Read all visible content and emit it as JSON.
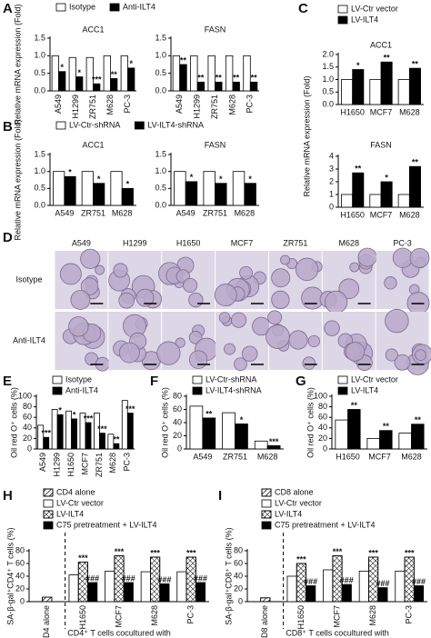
{
  "chart_data": [
    {
      "type": "bar",
      "panel": "A",
      "title": "ACC1",
      "ylabel": "Relative mRNA expression (Fold)",
      "categories": [
        "A549",
        "H1299",
        "ZR751",
        "M628",
        "PC-3"
      ],
      "series": [
        {
          "name": "Isotype",
          "color": "#ffffff",
          "values": [
            1,
            0.95,
            0.95,
            1,
            1
          ]
        },
        {
          "name": "Anti-ILT4",
          "color": "#000000",
          "values": [
            0.55,
            0.4,
            0.2,
            0.35,
            0.65
          ],
          "significance": [
            "*",
            "*",
            "***",
            "**",
            "*"
          ]
        }
      ],
      "ylim": [
        0,
        1.5
      ],
      "yticks": [
        {
          "value": 0,
          "label": "0.0"
        },
        0.5,
        {
          "value": 1,
          "label": "1.0"
        },
        1.5
      ]
    },
    {
      "type": "bar",
      "title": "FASN",
      "categories": [
        "A549",
        "H1299",
        "ZR751",
        "M628",
        "PC-3"
      ],
      "series": [
        {
          "color": "#ffffff",
          "values": [
            1,
            1,
            1,
            1,
            1
          ]
        },
        {
          "color": "#000000",
          "values": [
            0.75,
            0.25,
            0.25,
            0.25,
            0.25
          ],
          "significance": [
            "**",
            "**",
            "**",
            "**",
            "**"
          ]
        }
      ],
      "ylim": [
        0,
        1.5
      ],
      "yticks": [
        {
          "value": 0,
          "label": "0.0"
        },
        0.5,
        {
          "value": 1,
          "label": "1.0"
        },
        1.5
      ]
    },
    {
      "type": "bar",
      "panel": "B",
      "title": "ACC1",
      "ylabel": "Relative mRNA expression (Fold)",
      "categories": [
        "A549",
        "ZR751",
        "M628"
      ],
      "series": [
        {
          "name": "LV-Ctr-shRNA",
          "color": "#ffffff",
          "values": [
            1,
            1,
            1
          ]
        },
        {
          "name": "LV-ILT4-shRNA",
          "color": "#000000",
          "values": [
            0.85,
            0.65,
            0.5
          ],
          "significance": [
            "*",
            "*",
            "*"
          ]
        }
      ],
      "ylim": [
        0,
        1.5
      ],
      "yticks": [
        {
          "value": 0,
          "label": "0.0"
        },
        0.5,
        {
          "value": 1,
          "label": "1.0"
        },
        1.5
      ]
    },
    {
      "type": "bar",
      "title": "FASN",
      "categories": [
        "A549",
        "ZR751",
        "M628"
      ],
      "series": [
        {
          "color": "#ffffff",
          "values": [
            1,
            1,
            1
          ]
        },
        {
          "color": "#000000",
          "values": [
            0.7,
            0.65,
            0.65
          ],
          "significance": [
            "*",
            "*",
            "*"
          ]
        }
      ],
      "ylim": [
        0,
        1.5
      ],
      "yticks": [
        {
          "value": 0,
          "label": "0.0"
        },
        0.5,
        {
          "value": 1,
          "label": "1.0"
        },
        1.5
      ]
    },
    {
      "type": "bar",
      "panel": "C",
      "title": "ACC1",
      "ylabel": "Relative mRNA expression (Fold)",
      "categories": [
        "H1650",
        "MCF7",
        "M628"
      ],
      "series": [
        {
          "name": "LV-Ctr vector",
          "color": "#ffffff",
          "values": [
            1,
            1,
            1
          ]
        },
        {
          "name": "LV-ILT4",
          "color": "#000000",
          "values": [
            1.4,
            1.7,
            1.45
          ],
          "significance": [
            "*",
            "**",
            "**"
          ]
        }
      ],
      "ylim": [
        0,
        2
      ],
      "yticks": [
        {
          "value": 0,
          "label": "0.0"
        },
        0.5,
        {
          "value": 1,
          "label": "1.0"
        },
        1.5,
        {
          "value": 2,
          "label": "2.0"
        }
      ]
    },
    {
      "type": "bar",
      "title": "FASN",
      "categories": [
        "H1650",
        "MCF7",
        "M628"
      ],
      "series": [
        {
          "color": "#ffffff",
          "values": [
            1,
            1,
            1
          ]
        },
        {
          "color": "#000000",
          "values": [
            2.7,
            2.0,
            3.2
          ],
          "significance": [
            "**",
            "*",
            "**"
          ]
        }
      ],
      "ylim": [
        0,
        4
      ],
      "yticks": [
        0,
        1,
        2,
        3,
        4
      ]
    },
    {
      "type": "bar",
      "panel": "E",
      "ylabel": "Oil red O⁺ cells (%)",
      "categories": [
        "A549",
        "H1299",
        "H1650",
        "MCF7",
        "ZR751",
        "M628",
        "PC-3"
      ],
      "series": [
        {
          "name": "Isotype",
          "color": "#ffffff",
          "values": [
            45,
            75,
            72,
            68,
            68,
            28,
            92
          ]
        },
        {
          "name": "Anti-ILT4",
          "color": "#000000",
          "values": [
            22,
            65,
            57,
            50,
            30,
            10,
            68
          ],
          "significance": [
            "***",
            "*",
            "*",
            "***",
            "***",
            "**",
            "***"
          ]
        }
      ],
      "ylim": [
        0,
        100
      ],
      "yticks": [
        0,
        20,
        40,
        60,
        80,
        100
      ]
    },
    {
      "type": "bar",
      "panel": "F",
      "ylabel": "Oil red O⁺ cells (%)",
      "categories": [
        "A549",
        "ZR751",
        "M628"
      ],
      "series": [
        {
          "name": "LV-Ctr-shRNA",
          "color": "#ffffff",
          "values": [
            65,
            55,
            12
          ]
        },
        {
          "name": "LV-ILT4-shRNA",
          "color": "#000000",
          "values": [
            47,
            38,
            5
          ],
          "significance": [
            "**",
            "*",
            "***"
          ]
        }
      ],
      "ylim": [
        0,
        80
      ],
      "yticks": [
        0,
        20,
        40,
        60,
        80
      ]
    },
    {
      "type": "bar",
      "panel": "G",
      "ylabel": "Oil red O⁺ cells (%)",
      "categories": [
        "H1650",
        "MCF7",
        "M628"
      ],
      "series": [
        {
          "name": "LV-Ctr vector",
          "color": "#ffffff",
          "values": [
            55,
            20,
            30
          ]
        },
        {
          "name": "LV-ILT4",
          "color": "#000000",
          "values": [
            75,
            35,
            47
          ],
          "significance": [
            "**",
            "**",
            "**"
          ]
        }
      ],
      "ylim": [
        0,
        100
      ],
      "yticks": [
        0,
        20,
        40,
        60,
        80,
        100
      ]
    },
    {
      "type": "bar",
      "panel": "H",
      "ylabel": "SA-β-gal⁺CD4⁺ T cells (%)",
      "xlabel": "CD4⁺ T cells cocultured with",
      "categories": [
        "CD4 alone",
        "H1650",
        "MCF7",
        "M628",
        "PC-3"
      ],
      "series": [
        {
          "name": "CD4 alone",
          "color": "#ffffff",
          "pattern": "diagonal",
          "values": [
            7,
            null,
            null,
            null,
            null
          ]
        },
        {
          "name": "LV-Ctr vector",
          "color": "#ffffff",
          "values": [
            null,
            42,
            48,
            47,
            47
          ]
        },
        {
          "name": "LV-ILT4",
          "color": "#ffffff",
          "pattern": "crosshatch",
          "values": [
            null,
            62,
            72,
            70,
            70
          ],
          "significance": [
            null,
            "***",
            "***",
            "***",
            "***"
          ]
        },
        {
          "name": "C75 pretreatment + LV-ILT4",
          "color": "#000000",
          "values": [
            null,
            30,
            30,
            28,
            30
          ],
          "significance": [
            null,
            "###",
            "###",
            "###",
            "###"
          ]
        }
      ],
      "ylim": [
        0,
        80
      ],
      "yticks": [
        0,
        20,
        40,
        60,
        80
      ]
    },
    {
      "type": "bar",
      "panel": "I",
      "ylabel": "SA-β-gal⁺CD8⁺ T cells (%)",
      "xlabel": "CD8⁺ T cells cocultured with",
      "categories": [
        "CD8 alone",
        "H1650",
        "MCF7",
        "M628",
        "PC-3"
      ],
      "series": [
        {
          "name": "CD8 alone",
          "color": "#ffffff",
          "pattern": "diagonal",
          "values": [
            6,
            null,
            null,
            null,
            null
          ]
        },
        {
          "name": "LV-Ctr vector",
          "color": "#ffffff",
          "values": [
            null,
            40,
            50,
            48,
            48
          ]
        },
        {
          "name": "LV-ILT4",
          "color": "#ffffff",
          "pattern": "crosshatch",
          "values": [
            null,
            60,
            72,
            70,
            70
          ],
          "significance": [
            null,
            "***",
            "***",
            "***",
            "***"
          ]
        },
        {
          "name": "C75 pretreatment + LV-ILT4",
          "color": "#000000",
          "values": [
            null,
            25,
            27,
            22,
            25
          ],
          "significance": [
            null,
            "###",
            "###",
            "###",
            "###"
          ]
        }
      ],
      "ylim": [
        0,
        80
      ],
      "yticks": [
        0,
        20,
        40,
        60,
        80
      ]
    }
  ],
  "micrographs": {
    "panel": "D",
    "columns": [
      "A549",
      "H1299",
      "H1650",
      "MCF7",
      "ZR751",
      "M628",
      "PC-3"
    ],
    "rows": [
      "Isotype",
      "Anti-ILT4"
    ]
  }
}
